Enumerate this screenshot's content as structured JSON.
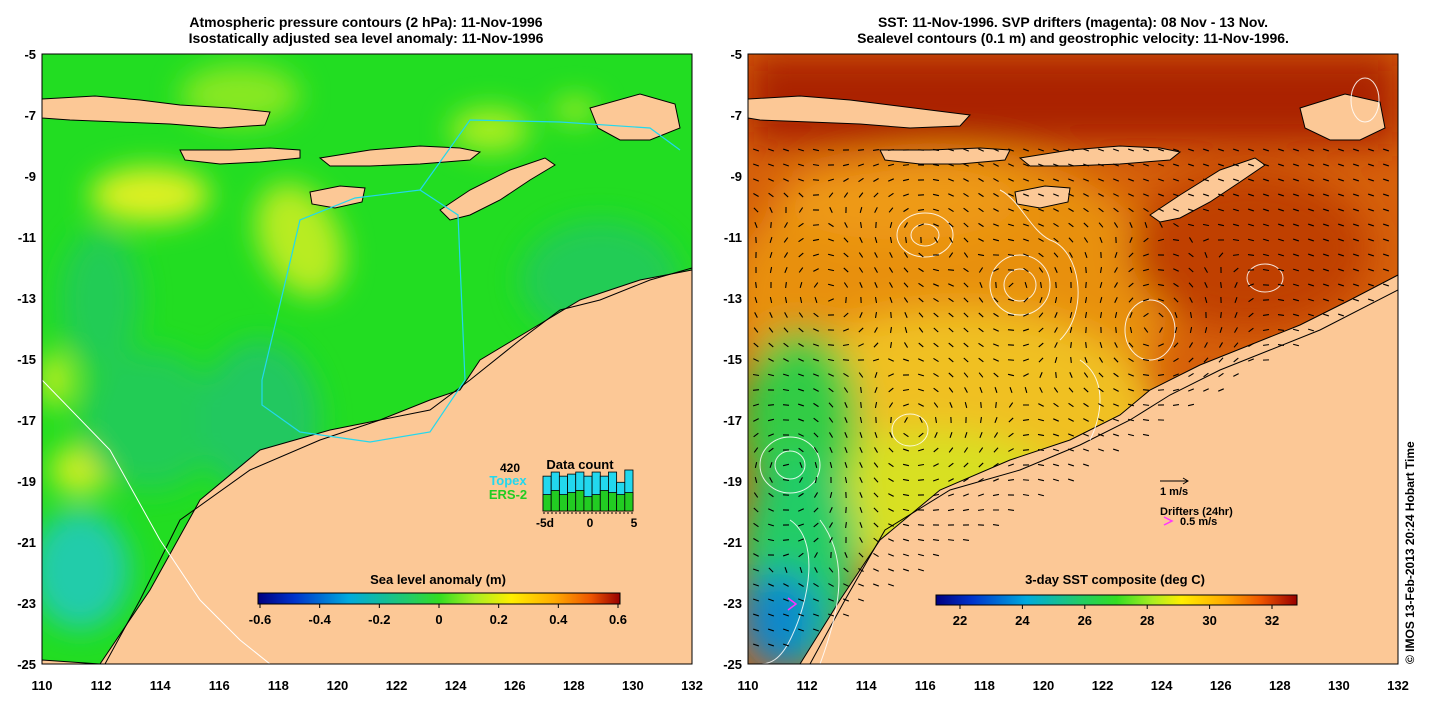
{
  "left_panel": {
    "title_line1": "Atmospheric pressure contours (2 hPa): 11-Nov-1996",
    "title_line2": "Isostatically adjusted sea level anomaly: 11-Nov-1996",
    "lon_ticks": [
      "110",
      "112",
      "114",
      "116",
      "118",
      "120",
      "122",
      "124",
      "126",
      "128",
      "130",
      "132"
    ],
    "lat_ticks": [
      "-5",
      "-7",
      "-9",
      "-11",
      "-13",
      "-15",
      "-17",
      "-19",
      "-21",
      "-23",
      "-25"
    ],
    "colorbar": {
      "title": "Sea level anomaly (m)",
      "range": [
        -0.6,
        0.6
      ],
      "tick_labels": [
        "-0.6",
        "-0.4",
        "-0.2",
        "0",
        "0.2",
        "0.4",
        "0.6"
      ]
    },
    "data_count": {
      "title": "Data count",
      "max_label": "420",
      "topex_label": "Topex",
      "ers_label": "ERS-2",
      "topex_color": "#22d8ee",
      "ers_color": "#22cc22",
      "axis_labels": [
        "-5d",
        "0",
        "5"
      ],
      "topex_values": [
        0.85,
        0.95,
        0.85,
        0.9,
        0.95,
        0.85,
        0.95,
        0.85,
        0.95,
        0.7,
        1.0
      ],
      "ers_values": [
        0.4,
        0.5,
        0.4,
        0.45,
        0.5,
        0.35,
        0.4,
        0.5,
        0.45,
        0.4,
        0.45
      ]
    }
  },
  "right_panel": {
    "title_line1": "SST: 11-Nov-1996. SVP drifters (magenta): 08 Nov - 13 Nov.",
    "title_line2": "Sealevel contours (0.1 m) and geostrophic velocity: 11-Nov-1996.",
    "lon_ticks": [
      "110",
      "112",
      "114",
      "116",
      "118",
      "120",
      "122",
      "124",
      "126",
      "128",
      "130",
      "132"
    ],
    "lat_ticks": [
      "-5",
      "-7",
      "-9",
      "-11",
      "-13",
      "-15",
      "-17",
      "-19",
      "-21",
      "-23",
      "-25"
    ],
    "colorbar": {
      "title": "3-day SST composite (deg C)",
      "tick_labels": [
        "22",
        "24",
        "26",
        "28",
        "30",
        "32"
      ]
    },
    "velocity_scale_label": "1 m/s",
    "drifters_label": "Drifters (24hr)",
    "drifter_scale_label": "0.5 m/s",
    "drifter_color": "#ff33ff"
  },
  "credit": "© IMOS 13-Feb-2013 20:24 Hobart Time",
  "colors": {
    "land": "#fcc896",
    "sla_base": "#22dd22",
    "sst_base": "#d6600a"
  }
}
